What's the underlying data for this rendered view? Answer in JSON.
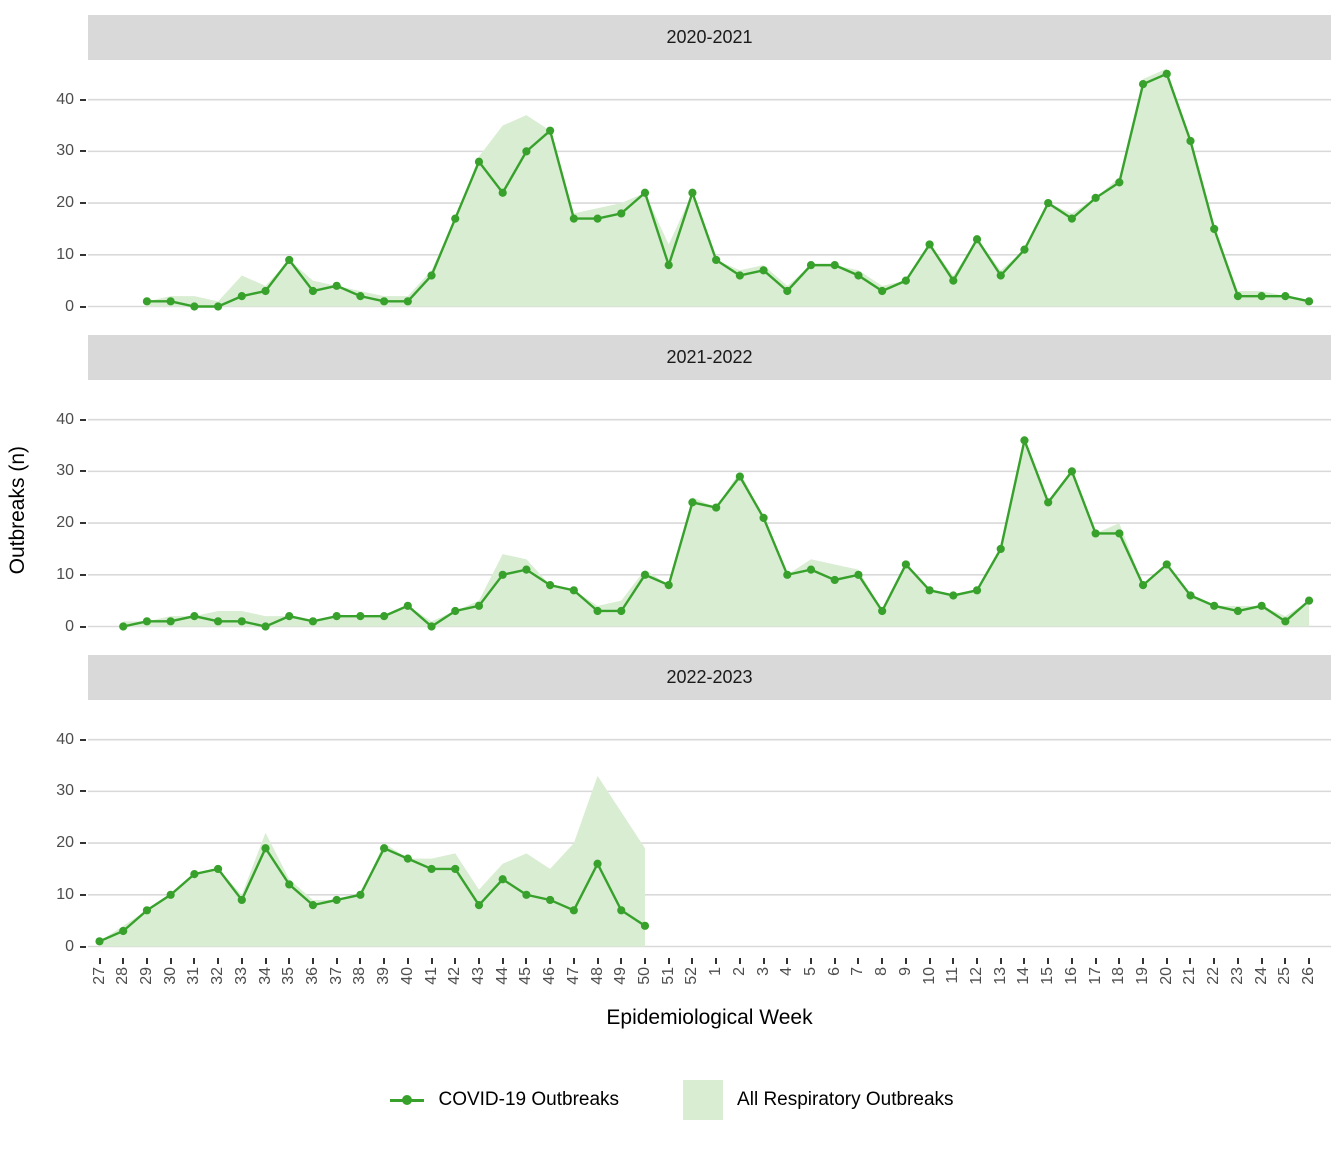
{
  "chart_data": {
    "type": "area",
    "subtype": "faceted line + area, 3 row facets sharing x axis",
    "xlabel": "Epidemiological Week",
    "ylabel": "Outbreaks (n)",
    "y_ticks": [
      0,
      10,
      20,
      30,
      40
    ],
    "ylim": [
      -2.25,
      47.25
    ],
    "grid": "horizontal major gridlines only",
    "legend_position": "bottom center",
    "categories": [
      "27",
      "28",
      "29",
      "30",
      "31",
      "32",
      "33",
      "34",
      "35",
      "36",
      "37",
      "38",
      "39",
      "40",
      "41",
      "42",
      "43",
      "44",
      "45",
      "46",
      "47",
      "48",
      "49",
      "50",
      "51",
      "52",
      "1",
      "2",
      "3",
      "4",
      "5",
      "6",
      "7",
      "8",
      "9",
      "10",
      "11",
      "12",
      "13",
      "14",
      "15",
      "16",
      "17",
      "18",
      "19",
      "20",
      "21",
      "22",
      "23",
      "24",
      "25",
      "26"
    ],
    "legend": [
      {
        "label": "COVID-19 Outbreaks",
        "type": "line-point"
      },
      {
        "label": "All Respiratory Outbreaks",
        "type": "area"
      }
    ],
    "colors": {
      "line": "#37a12c",
      "area_fill": "#d9edd3",
      "strip_bg": "#d9d9d9",
      "gridline": "#d9d9d9",
      "axis_text": "#4d4d4d",
      "tick_mark": "#333333"
    },
    "facets": [
      {
        "label": "2020-2021",
        "series": [
          {
            "name": "COVID-19 Outbreaks",
            "values": [
              null,
              null,
              1,
              1,
              0,
              0,
              2,
              3,
              9,
              3,
              4,
              2,
              1,
              1,
              6,
              17,
              28,
              22,
              30,
              34,
              17,
              17,
              18,
              22,
              8,
              22,
              9,
              6,
              7,
              3,
              8,
              8,
              6,
              3,
              5,
              12,
              5,
              13,
              6,
              11,
              20,
              17,
              21,
              24,
              43,
              45,
              32,
              15,
              2,
              2,
              2,
              1
            ]
          },
          {
            "name": "All Respiratory Outbreaks",
            "values": [
              null,
              null,
              1,
              2,
              2,
              1,
              6,
              4,
              9,
              5,
              4,
              3,
              2,
              2,
              7,
              17,
              29,
              35,
              37,
              34,
              18,
              19,
              20,
              22,
              12,
              22,
              9,
              7,
              8,
              4,
              8,
              8,
              7,
              4,
              5,
              12,
              6,
              13,
              7,
              11,
              20,
              18,
              21,
              25,
              44,
              46,
              32,
              15,
              3,
              3,
              2,
              1
            ]
          }
        ]
      },
      {
        "label": "2021-2022",
        "series": [
          {
            "name": "COVID-19 Outbreaks",
            "values": [
              null,
              0,
              1,
              1,
              2,
              1,
              1,
              0,
              2,
              1,
              2,
              2,
              2,
              4,
              0,
              3,
              4,
              10,
              11,
              8,
              7,
              3,
              3,
              10,
              8,
              24,
              23,
              29,
              21,
              10,
              11,
              9,
              10,
              3,
              12,
              7,
              6,
              7,
              15,
              36,
              24,
              30,
              18,
              18,
              8,
              12,
              6,
              4,
              3,
              4,
              1,
              5
            ]
          },
          {
            "name": "All Respiratory Outbreaks",
            "values": [
              null,
              1,
              1,
              2,
              2,
              3,
              3,
              2,
              2,
              1,
              2,
              2,
              2,
              4,
              1,
              3,
              5,
              14,
              13,
              8,
              7,
              4,
              5,
              11,
              8,
              25,
              23,
              30,
              21,
              10,
              13,
              12,
              11,
              3,
              12,
              7,
              6,
              7,
              15,
              36,
              24,
              30,
              18,
              20,
              8,
              12,
              6,
              4,
              4,
              4,
              2,
              5
            ]
          }
        ]
      },
      {
        "label": "2022-2023",
        "series": [
          {
            "name": "COVID-19 Outbreaks",
            "values": [
              1,
              3,
              7,
              10,
              14,
              15,
              9,
              19,
              12,
              8,
              9,
              10,
              19,
              17,
              15,
              15,
              8,
              13,
              10,
              9,
              7,
              16,
              7,
              4,
              null,
              null,
              null,
              null,
              null,
              null,
              null,
              null,
              null,
              null,
              null,
              null,
              null,
              null,
              null,
              null,
              null,
              null,
              null,
              null,
              null,
              null,
              null,
              null,
              null,
              null,
              null,
              null
            ]
          },
          {
            "name": "All Respiratory Outbreaks",
            "values": [
              1,
              4,
              7,
              10,
              14,
              15,
              10,
              22,
              13,
              9,
              9,
              10,
              20,
              17,
              17,
              18,
              11,
              16,
              18,
              15,
              20,
              33,
              26,
              19,
              null,
              null,
              null,
              null,
              null,
              null,
              null,
              null,
              null,
              null,
              null,
              null,
              null,
              null,
              null,
              null,
              null,
              null,
              null,
              null,
              null,
              null,
              null,
              null,
              null,
              null,
              null,
              null
            ]
          }
        ]
      }
    ]
  }
}
